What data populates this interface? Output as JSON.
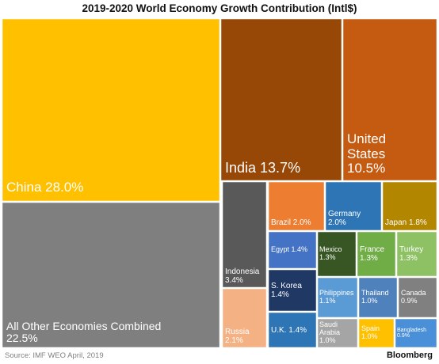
{
  "chart_data": {
    "type": "treemap",
    "title": "2019-2020 World Economy Growth Contribution (Intl$)",
    "items": [
      {
        "key": "china",
        "label": "China 28.0%",
        "lines": [
          "China 28.0%"
        ],
        "value": 28.0,
        "color": "#ffc000"
      },
      {
        "key": "other",
        "label": "All Other Economies Combined 22.5%",
        "lines": [
          "All Other Economies Combined",
          "22.5%"
        ],
        "value": 22.5,
        "color": "#7f7f7f"
      },
      {
        "key": "india",
        "label": "India 13.7%",
        "lines": [
          "India 13.7%"
        ],
        "value": 13.7,
        "color": "#974706"
      },
      {
        "key": "us",
        "label": "United States 10.5%",
        "lines": [
          "United",
          "States",
          "10.5%"
        ],
        "value": 10.5,
        "color": "#c55a11"
      },
      {
        "key": "indonesia",
        "label": "Indonesia 3.4%",
        "lines": [
          "Indonesia",
          "3.4%"
        ],
        "value": 3.4,
        "color": "#595959"
      },
      {
        "key": "russia",
        "label": "Russia 2.1%",
        "lines": [
          "Russia",
          "2.1%"
        ],
        "value": 2.1,
        "color": "#f4b183"
      },
      {
        "key": "brazil",
        "label": "Brazil 2.0%",
        "lines": [
          "Brazil 2.0%"
        ],
        "value": 2.0,
        "color": "#ed7d31"
      },
      {
        "key": "germany",
        "label": "Germany 2.0%",
        "lines": [
          "Germany",
          "2.0%"
        ],
        "value": 2.0,
        "color": "#2e75b6"
      },
      {
        "key": "japan",
        "label": "Japan 1.8%",
        "lines": [
          "Japan 1.8%"
        ],
        "value": 1.8,
        "color": "#b38600"
      },
      {
        "key": "egypt",
        "label": "Egypt 1.4%",
        "lines": [
          "Egypt 1.4%"
        ],
        "value": 1.4,
        "color": "#4472c4"
      },
      {
        "key": "skorea",
        "label": "S. Korea 1.4%",
        "lines": [
          "S. Korea",
          "1.4%"
        ],
        "value": 1.4,
        "color": "#203864"
      },
      {
        "key": "uk",
        "label": "U.K. 1.4%",
        "lines": [
          "U.K. 1.4%"
        ],
        "value": 1.4,
        "color": "#2e75b6"
      },
      {
        "key": "mexico",
        "label": "Mexico 1.3%",
        "lines": [
          "Mexico",
          "1.3%"
        ],
        "value": 1.3,
        "color": "#375623"
      },
      {
        "key": "france",
        "label": "France 1.3%",
        "lines": [
          "France",
          "1.3%"
        ],
        "value": 1.3,
        "color": "#70ad47"
      },
      {
        "key": "turkey",
        "label": "Turkey 1.3%",
        "lines": [
          "Turkey",
          "1.3%"
        ],
        "value": 1.3,
        "color": "#8dc163"
      },
      {
        "key": "philippines",
        "label": "Philippines 1.1%",
        "lines": [
          "Philippines",
          "1.1%"
        ],
        "value": 1.1,
        "color": "#5b9bd5"
      },
      {
        "key": "thailand",
        "label": "Thailand 1.0%",
        "lines": [
          "Thailand",
          "1.0%"
        ],
        "value": 1.0,
        "color": "#4f81bd"
      },
      {
        "key": "canada",
        "label": "Canada 0.9%",
        "lines": [
          "Canada",
          "0.9%"
        ],
        "value": 0.9,
        "color": "#808080"
      },
      {
        "key": "saudi",
        "label": "Saudi Arabia 1.0%",
        "lines": [
          "Saudi",
          "Arabia",
          "1.0%"
        ],
        "value": 1.0,
        "color": "#a5a5a5"
      },
      {
        "key": "spain",
        "label": "Spain 1.0%",
        "lines": [
          "Spain",
          "1.0%"
        ],
        "value": 1.0,
        "color": "#ffc000"
      },
      {
        "key": "bangladesh",
        "label": "Bangladesh 0.9%",
        "lines": [
          "Bangladesh",
          "0.9%"
        ],
        "value": 0.9,
        "color": "#4a90d9"
      }
    ]
  },
  "footer": {
    "source": "Source: IMF WEO April, 2019",
    "brand": "Bloomberg"
  }
}
